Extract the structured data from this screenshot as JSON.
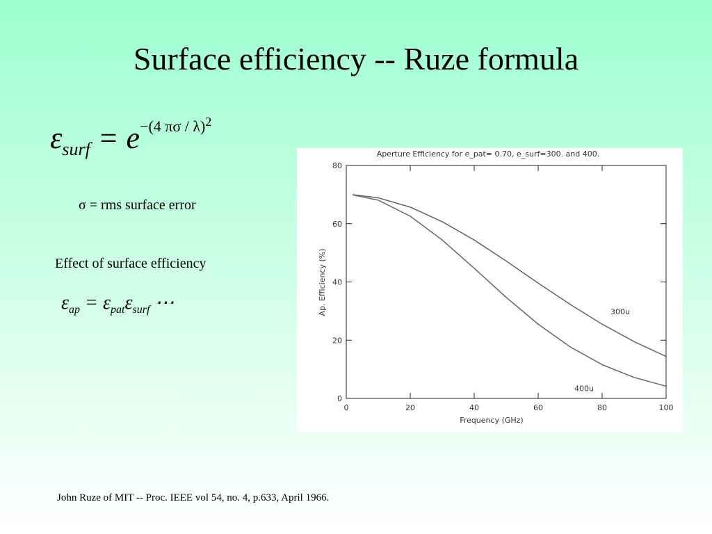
{
  "slide": {
    "title": "Surface efficiency -- Ruze formula",
    "formula1": {
      "symbol": "ε",
      "subscript": "surf",
      "equals": "= e",
      "exponent": "−(4 πσ / λ)",
      "power": "2"
    },
    "sigma_note": "σ = rms surface error",
    "effect_heading": "Effect of surface efficiency",
    "formula2": {
      "symbol": "ε",
      "subscript": "ap",
      "equals": "= ε",
      "sub2": "pat",
      "symbol3": "ε",
      "sub3": "surf",
      "dots": "⋯"
    },
    "footer": "John Ruze of MIT -- Proc. IEEE vol 54, no. 4, p.633, April 1966."
  },
  "chart_data": {
    "type": "line",
    "title": "Aperture Efficiency for e_pat= 0.70, e_surf=300. and 400.",
    "x_label": "Frequency (GHz)",
    "y_label": "Ap. Efficiency (%)",
    "x": [
      2,
      10,
      20,
      30,
      40,
      50,
      60,
      70,
      80,
      90,
      100
    ],
    "series": [
      {
        "name": "300u",
        "color": "#666666",
        "values": [
          70.0,
          68.9,
          65.7,
          60.7,
          54.4,
          47.2,
          39.6,
          32.3,
          25.5,
          19.5,
          14.4
        ]
      },
      {
        "name": "400u",
        "color": "#666666",
        "values": [
          69.9,
          68.1,
          62.6,
          54.4,
          44.7,
          34.7,
          25.5,
          17.7,
          11.6,
          7.2,
          4.2
        ]
      }
    ],
    "xlim": [
      0,
      100
    ],
    "ylim": [
      0,
      80
    ],
    "xticks": [
      0,
      20,
      40,
      60,
      80,
      100
    ],
    "yticks": [
      0,
      20,
      40,
      60,
      80
    ],
    "grid": false
  }
}
